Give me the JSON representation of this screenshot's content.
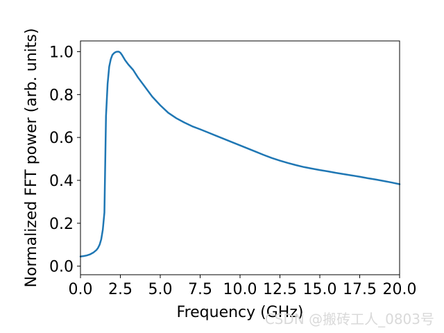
{
  "chart_data": {
    "type": "line",
    "title": "",
    "xlabel": "Frequency (GHz)",
    "ylabel": "Normalized FFT power (arb. units)",
    "xlim": [
      0.0,
      20.0
    ],
    "ylim": [
      -0.04,
      1.05
    ],
    "xticks": [
      0.0,
      2.5,
      5.0,
      7.5,
      10.0,
      12.5,
      15.0,
      17.5,
      20.0
    ],
    "xtick_labels": [
      "0.0",
      "2.5",
      "5.0",
      "7.5",
      "10.0",
      "12.5",
      "15.0",
      "17.5",
      "20.0"
    ],
    "yticks": [
      0.0,
      0.2,
      0.4,
      0.6,
      0.8,
      1.0
    ],
    "ytick_labels": [
      "0.0",
      "0.2",
      "0.4",
      "0.6",
      "0.8",
      "1.0"
    ],
    "grid": false,
    "line_color": "#1f77b4",
    "series": [
      {
        "x": [
          0.0,
          0.2,
          0.4,
          0.6,
          0.8,
          1.0,
          1.1,
          1.2,
          1.3,
          1.4,
          1.5,
          1.6,
          1.7,
          1.8,
          1.9,
          2.0,
          2.1,
          2.2,
          2.3,
          2.4,
          2.5,
          2.6,
          2.8,
          3.0,
          3.3,
          3.6,
          4.0,
          4.5,
          5.0,
          5.5,
          6.0,
          6.5,
          7.0,
          7.5,
          8.0,
          8.5,
          9.0,
          9.5,
          10.0,
          10.5,
          11.0,
          11.5,
          12.0,
          12.5,
          13.0,
          13.5,
          14.0,
          14.5,
          15.0,
          15.5,
          16.0,
          16.5,
          17.0,
          17.5,
          18.0,
          18.5,
          19.0,
          19.5,
          20.0
        ],
        "y": [
          0.045,
          0.047,
          0.05,
          0.055,
          0.063,
          0.075,
          0.085,
          0.1,
          0.125,
          0.17,
          0.25,
          0.7,
          0.85,
          0.93,
          0.965,
          0.985,
          0.993,
          0.998,
          1.0,
          1.0,
          0.995,
          0.985,
          0.96,
          0.94,
          0.915,
          0.88,
          0.84,
          0.79,
          0.75,
          0.715,
          0.69,
          0.67,
          0.652,
          0.638,
          0.623,
          0.608,
          0.593,
          0.578,
          0.563,
          0.548,
          0.533,
          0.518,
          0.504,
          0.492,
          0.481,
          0.471,
          0.462,
          0.455,
          0.448,
          0.442,
          0.435,
          0.429,
          0.423,
          0.417,
          0.41,
          0.404,
          0.397,
          0.39,
          0.382
        ]
      }
    ]
  },
  "watermark": "CSDN @搬砖工人_0803号"
}
